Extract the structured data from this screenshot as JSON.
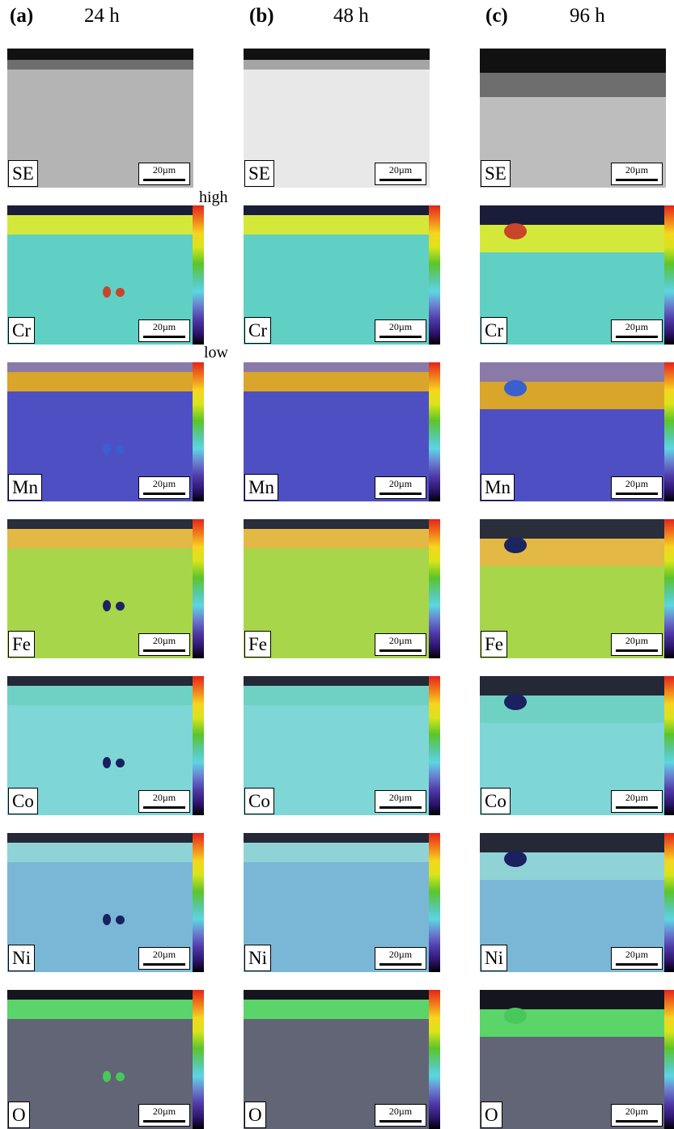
{
  "columns": [
    {
      "letter": "(a)",
      "time": "24 h"
    },
    {
      "letter": "(b)",
      "time": "48 h"
    },
    {
      "letter": "(c)",
      "time": "96 h"
    }
  ],
  "rows": [
    {
      "element": "SE",
      "kind": "se"
    },
    {
      "element": "Cr",
      "kind": "map"
    },
    {
      "element": "Mn",
      "kind": "map"
    },
    {
      "element": "Fe",
      "kind": "map"
    },
    {
      "element": "Co",
      "kind": "map"
    },
    {
      "element": "Ni",
      "kind": "map"
    },
    {
      "element": "O",
      "kind": "map"
    }
  ],
  "scale_bar": "20µm",
  "intensity_scale": {
    "high": "high",
    "low": "low"
  },
  "colors": {
    "Cr": {
      "bulk": "#5fd0c3",
      "layer": "#d4e83a",
      "oxide": "#1a1d3a",
      "feature": "#c8452a"
    },
    "Mn": {
      "bulk": "#4f4fc4",
      "layer": "#d9a52a",
      "oxide": "#8a7aa8",
      "feature": "#3a5fcf"
    },
    "Fe": {
      "bulk": "#a7d64a",
      "layer": "#e3b845",
      "oxide": "#2a2d3a",
      "feature": "#1c2560"
    },
    "Co": {
      "bulk": "#7fd6d6",
      "layer": "#6fd1c3",
      "oxide": "#252836",
      "feature": "#1a2060"
    },
    "Ni": {
      "bulk": "#7ab7d6",
      "layer": "#8fd3d6",
      "oxide": "#252836",
      "feature": "#1a2060"
    },
    "O": {
      "bulk": "#626575",
      "layer": "#5bd46a",
      "oxide": "#151520",
      "feature": "#48c85a"
    }
  }
}
